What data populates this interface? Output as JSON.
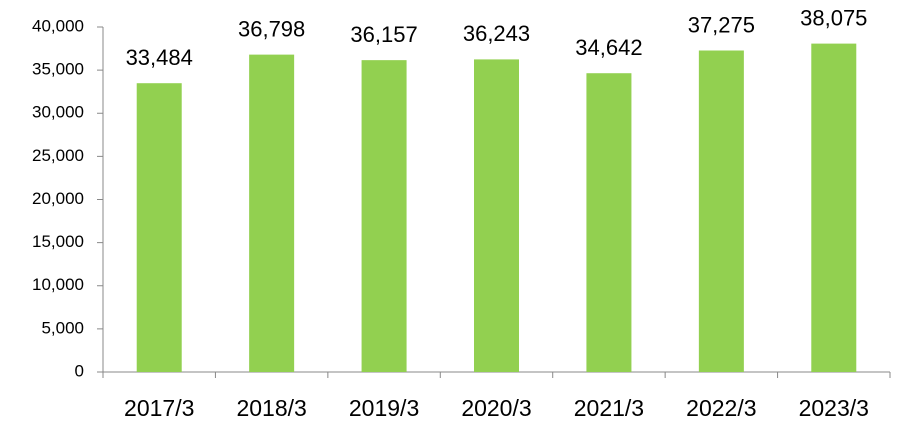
{
  "chart_data": {
    "type": "bar",
    "categories": [
      "2017/3",
      "2018/3",
      "2019/3",
      "2020/3",
      "2021/3",
      "2022/3",
      "2023/3"
    ],
    "values": [
      33484,
      36798,
      36157,
      36243,
      34642,
      37275,
      38075
    ],
    "value_labels": [
      "33,484",
      "36,798",
      "36,157",
      "36,243",
      "34,642",
      "37,275",
      "38,075"
    ],
    "color": "#92d050",
    "ylim": [
      0,
      40000
    ],
    "yticks": [
      0,
      {
        "value": 5000,
        "label": "5,000"
      },
      {
        "value": 10000,
        "label": "10,000"
      },
      {
        "value": 15000,
        "label": "15,000"
      },
      {
        "value": 20000,
        "label": "20,000"
      },
      {
        "value": 25000,
        "label": "25,000"
      },
      {
        "value": 30000,
        "label": "30,000"
      },
      {
        "value": 35000,
        "label": "35,000"
      },
      {
        "value": 40000,
        "label": "40,000"
      }
    ],
    "grid": false
  }
}
